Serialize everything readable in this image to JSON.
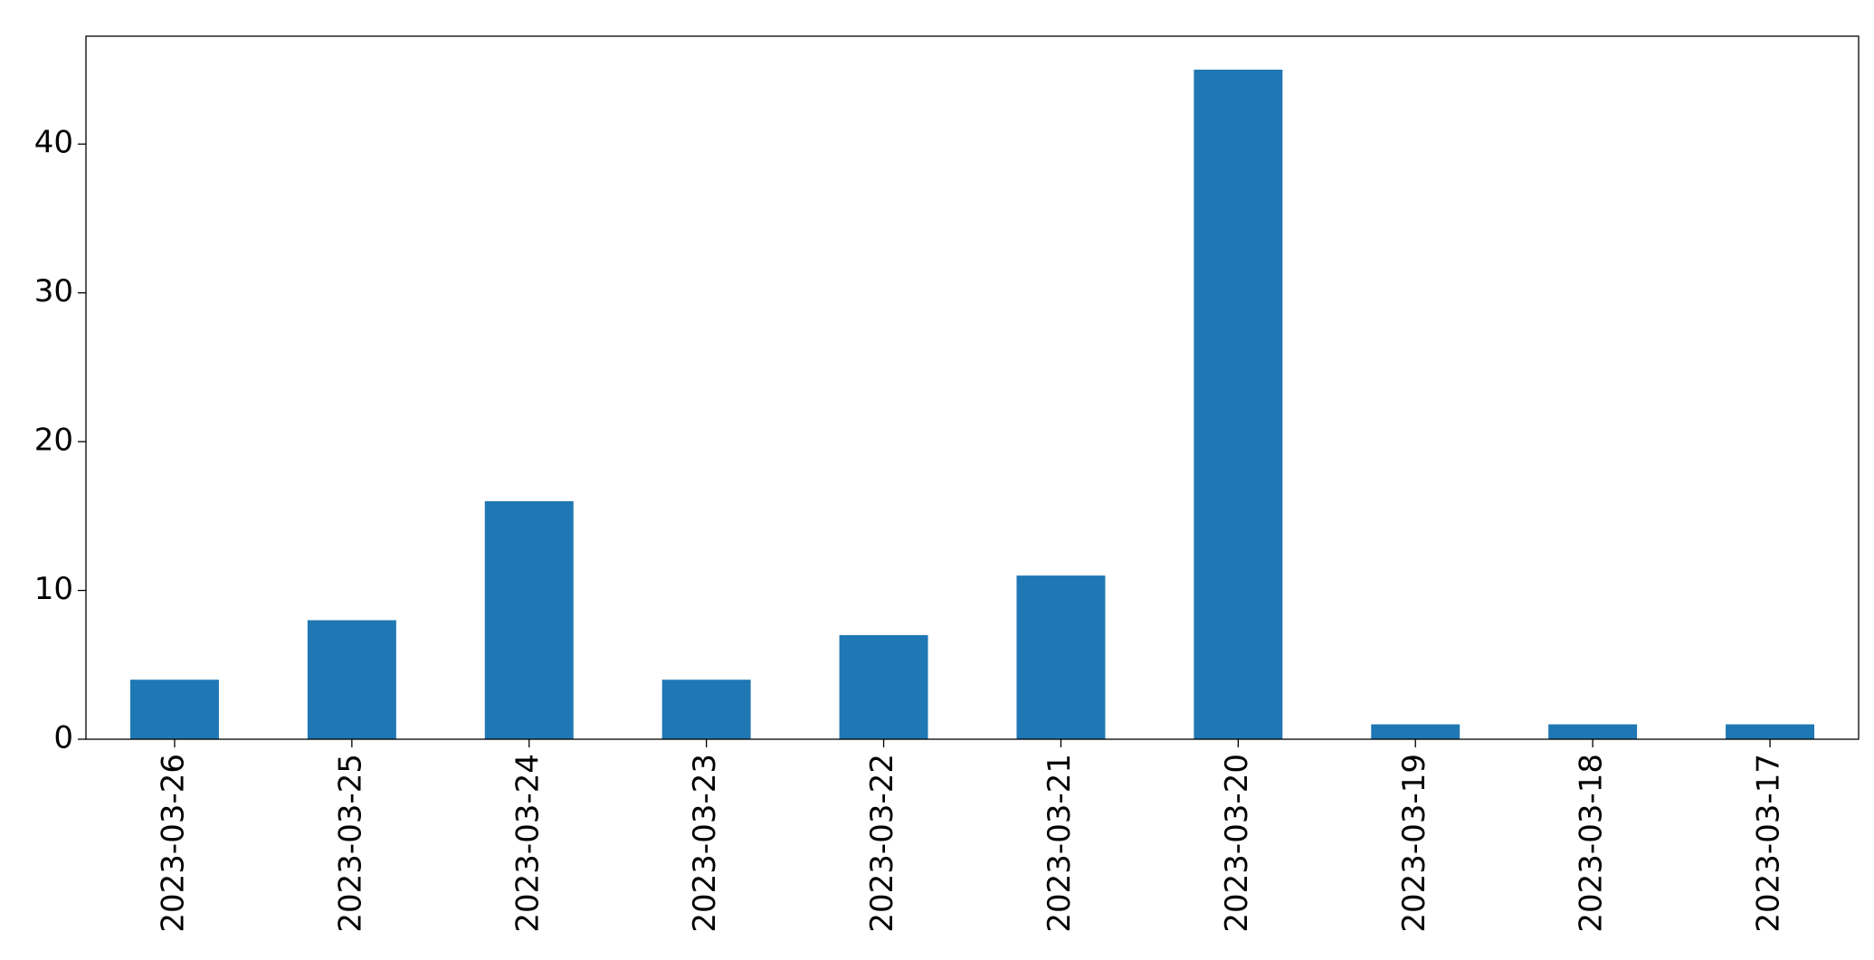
{
  "chart_data": {
    "type": "bar",
    "categories": [
      "2023-03-26",
      "2023-03-25",
      "2023-03-24",
      "2023-03-23",
      "2023-03-22",
      "2023-03-21",
      "2023-03-20",
      "2023-03-19",
      "2023-03-18",
      "2023-03-17"
    ],
    "values": [
      4,
      8,
      16,
      4,
      7,
      11,
      45,
      1,
      1,
      1
    ],
    "color": "#1f77b4",
    "ylim": [
      0,
      47.25
    ],
    "yticks": [
      0,
      10,
      20,
      30,
      40
    ],
    "grid": false
  }
}
